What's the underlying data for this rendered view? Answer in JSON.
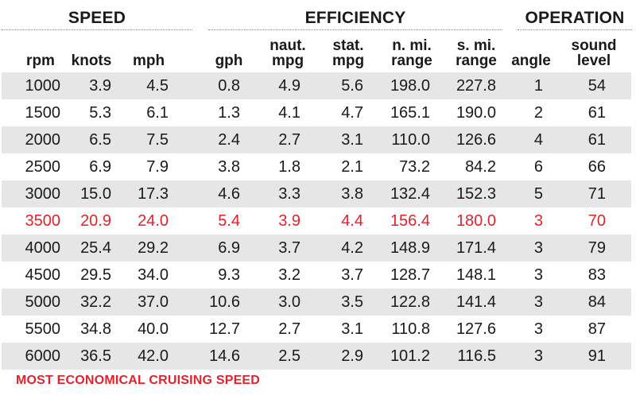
{
  "groups": {
    "speed": "SPEED",
    "efficiency": "EFFICIENCY",
    "operation": "OPERATION"
  },
  "footnote": "MOST ECONOMICAL CRUISING SPEED",
  "colors": {
    "highlight": "#e3222b",
    "row_shade": "#e6e6e6"
  },
  "chart_data": {
    "type": "table",
    "columns": [
      "rpm",
      "knots",
      "mph",
      "gph",
      "naut.\nmpg",
      "stat.\nmpg",
      "n. mi.\nrange",
      "s. mi.\nrange",
      "angle",
      "sound\nlevel"
    ],
    "rows": [
      [
        "1000",
        "3.9",
        "4.5",
        "0.8",
        "4.9",
        "5.6",
        "198.0",
        "227.8",
        "1",
        "54"
      ],
      [
        "1500",
        "5.3",
        "6.1",
        "1.3",
        "4.1",
        "4.7",
        "165.1",
        "190.0",
        "2",
        "61"
      ],
      [
        "2000",
        "6.5",
        "7.5",
        "2.4",
        "2.7",
        "3.1",
        "110.0",
        "126.6",
        "4",
        "61"
      ],
      [
        "2500",
        "6.9",
        "7.9",
        "3.8",
        "1.8",
        "2.1",
        "73.2",
        "84.2",
        "6",
        "66"
      ],
      [
        "3000",
        "15.0",
        "17.3",
        "4.6",
        "3.3",
        "3.8",
        "132.4",
        "152.3",
        "5",
        "71"
      ],
      [
        "3500",
        "20.9",
        "24.0",
        "5.4",
        "3.9",
        "4.4",
        "156.4",
        "180.0",
        "3",
        "70"
      ],
      [
        "4000",
        "25.4",
        "29.2",
        "6.9",
        "3.7",
        "4.2",
        "148.9",
        "171.4",
        "3",
        "79"
      ],
      [
        "4500",
        "29.5",
        "34.0",
        "9.3",
        "3.2",
        "3.7",
        "128.7",
        "148.1",
        "3",
        "83"
      ],
      [
        "5000",
        "32.2",
        "37.0",
        "10.6",
        "3.0",
        "3.5",
        "122.8",
        "141.4",
        "3",
        "84"
      ],
      [
        "5500",
        "34.8",
        "40.0",
        "12.7",
        "2.7",
        "3.1",
        "110.8",
        "127.6",
        "3",
        "87"
      ],
      [
        "6000",
        "36.5",
        "42.0",
        "14.6",
        "2.5",
        "2.9",
        "101.2",
        "116.5",
        "3",
        "91"
      ]
    ],
    "highlight_row": 5
  }
}
